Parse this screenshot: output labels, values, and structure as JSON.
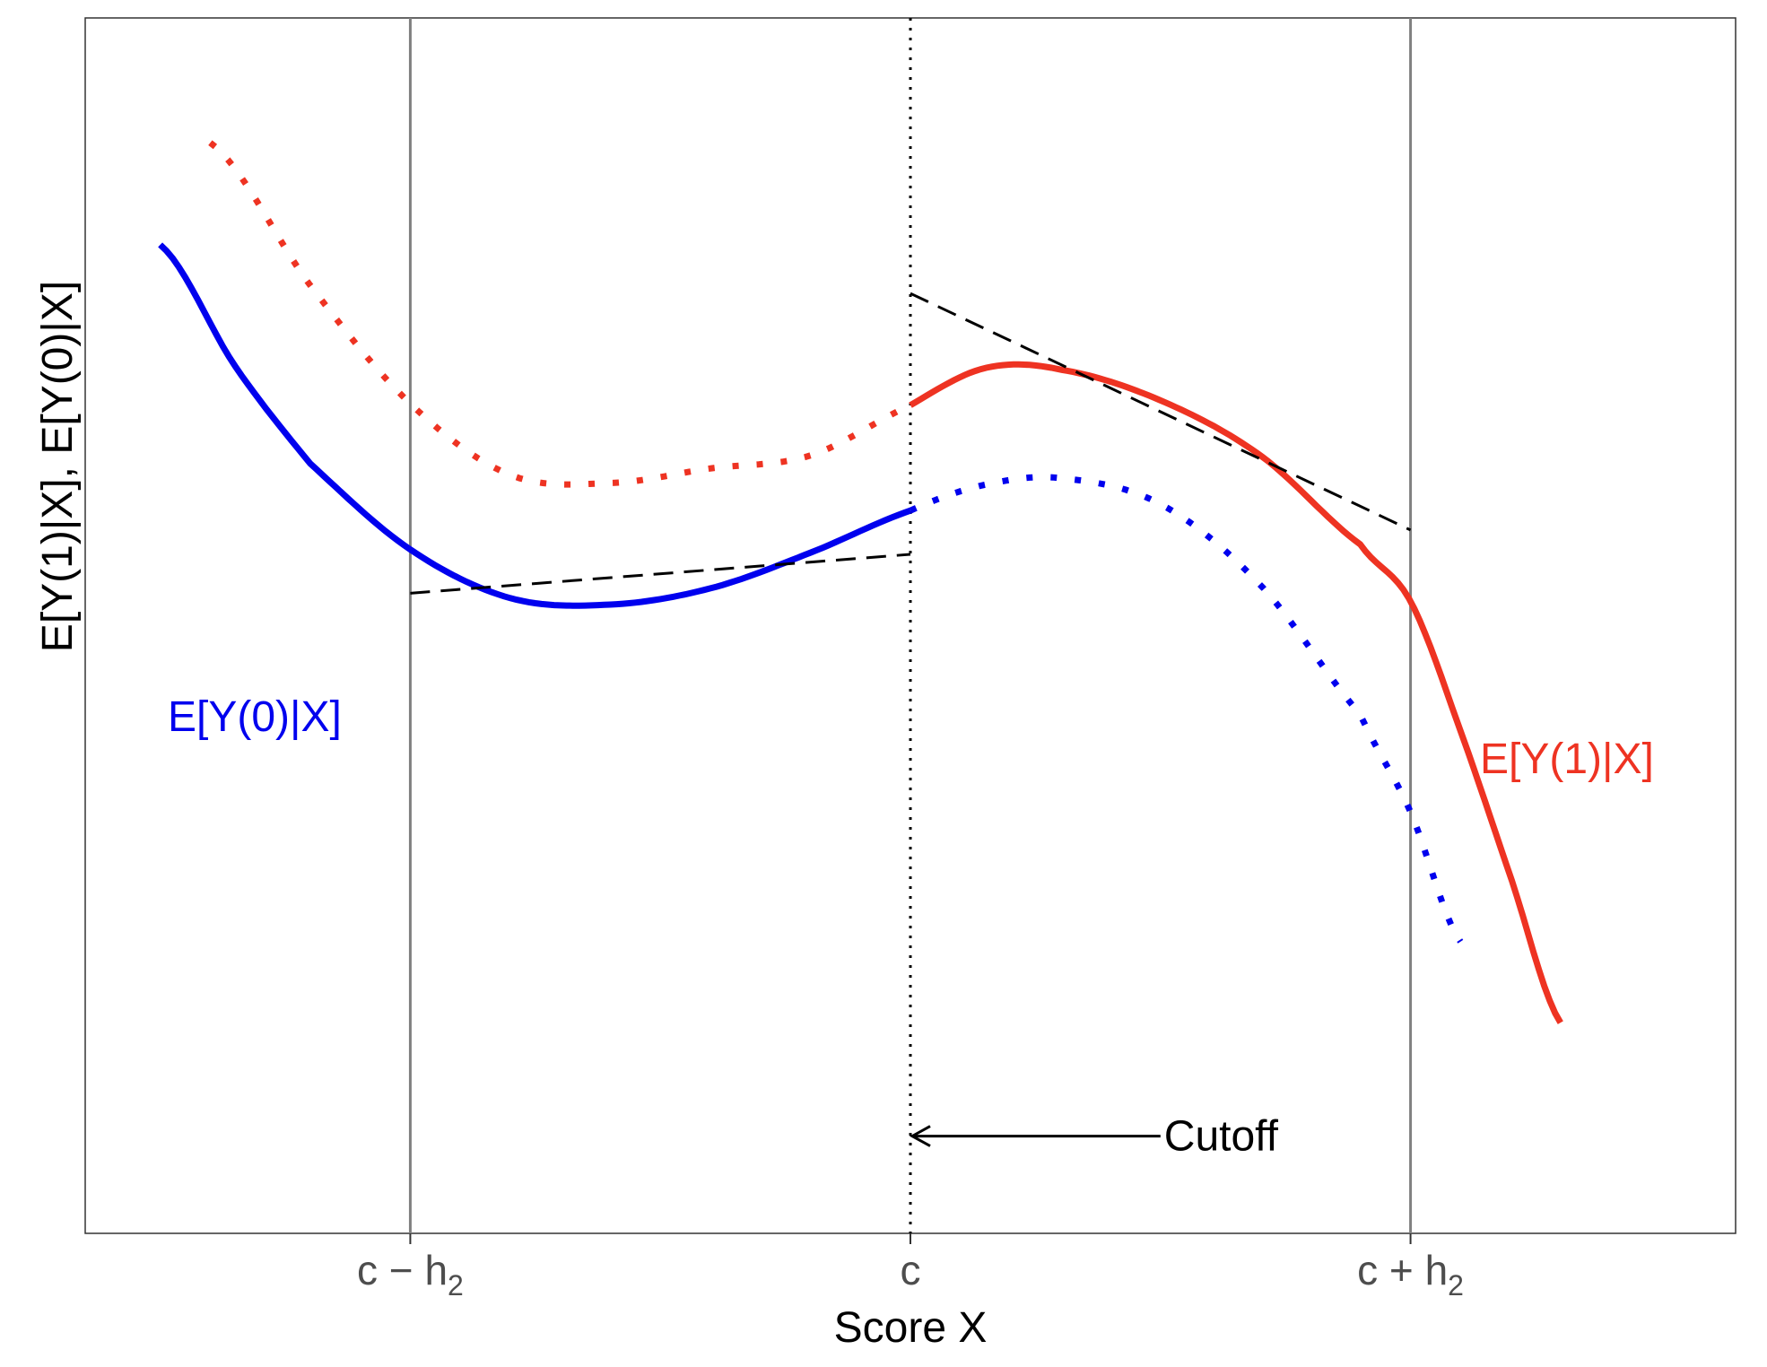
{
  "chart_data": {
    "type": "line",
    "title": "",
    "xlabel": "Score X",
    "ylabel": "E[Y(1)|X], E[Y(0)|X]",
    "xlim": [
      -1.65,
      1.65
    ],
    "ylim": [
      -4.8,
      2.7
    ],
    "grid": false,
    "x_ticks": [
      {
        "value": -1,
        "base": "c − h",
        "sub": "2"
      },
      {
        "value": 0,
        "base": "c",
        "sub": ""
      },
      {
        "value": 1,
        "base": "c + h",
        "sub": "2"
      }
    ],
    "bandwidth_lines": [
      -1,
      1
    ],
    "cutoff": 0,
    "cutoff_label": "Cutoff",
    "cutoff_arrow": {
      "from": [
        0.5,
        -4.2
      ],
      "to": [
        0.0,
        -4.2
      ]
    },
    "series": [
      {
        "name": "E[Y(0)|X]",
        "color": "#0000ee",
        "observed_range": [
          -1.5,
          0.0
        ],
        "counterfactual_range": [
          0.0,
          1.1
        ],
        "x": [
          -1.5,
          -1.35,
          -1.2,
          -1.0,
          -0.8,
          -0.6,
          -0.4,
          -0.2,
          0.0,
          0.15,
          0.3,
          0.5,
          0.7,
          0.9,
          1.0,
          1.1
        ],
        "y": [
          1.3,
          0.55,
          -0.05,
          -0.58,
          -0.88,
          -0.92,
          -0.82,
          -0.6,
          -0.34,
          -0.18,
          -0.14,
          -0.3,
          -0.8,
          -1.6,
          -2.2,
          -3.0
        ]
      },
      {
        "name": "E[Y(1)|X]",
        "color": "#ee3322",
        "observed_range": [
          0.0,
          1.3
        ],
        "counterfactual_range": [
          -1.4,
          0.0
        ],
        "x": [
          -1.4,
          -1.2,
          -1.0,
          -0.8,
          -0.6,
          -0.4,
          -0.2,
          0.0,
          0.15,
          0.3,
          0.5,
          0.7,
          0.9,
          1.0,
          1.1,
          1.2,
          1.3
        ],
        "y": [
          1.93,
          1.05,
          0.32,
          -0.12,
          -0.17,
          -0.08,
          0.0,
          0.31,
          0.54,
          0.53,
          0.34,
          0.0,
          -0.55,
          -0.9,
          -1.7,
          -2.6,
          -3.5
        ]
      }
    ],
    "fit_lines": [
      {
        "x": [
          -1.0,
          0.0
        ],
        "y": [
          -0.85,
          -0.61
        ]
      },
      {
        "x": [
          0.0,
          1.0
        ],
        "y": [
          1.0,
          -0.46
        ]
      }
    ]
  },
  "labels": {
    "y0": "E[Y(0)|X]",
    "y1": "E[Y(1)|X]"
  }
}
